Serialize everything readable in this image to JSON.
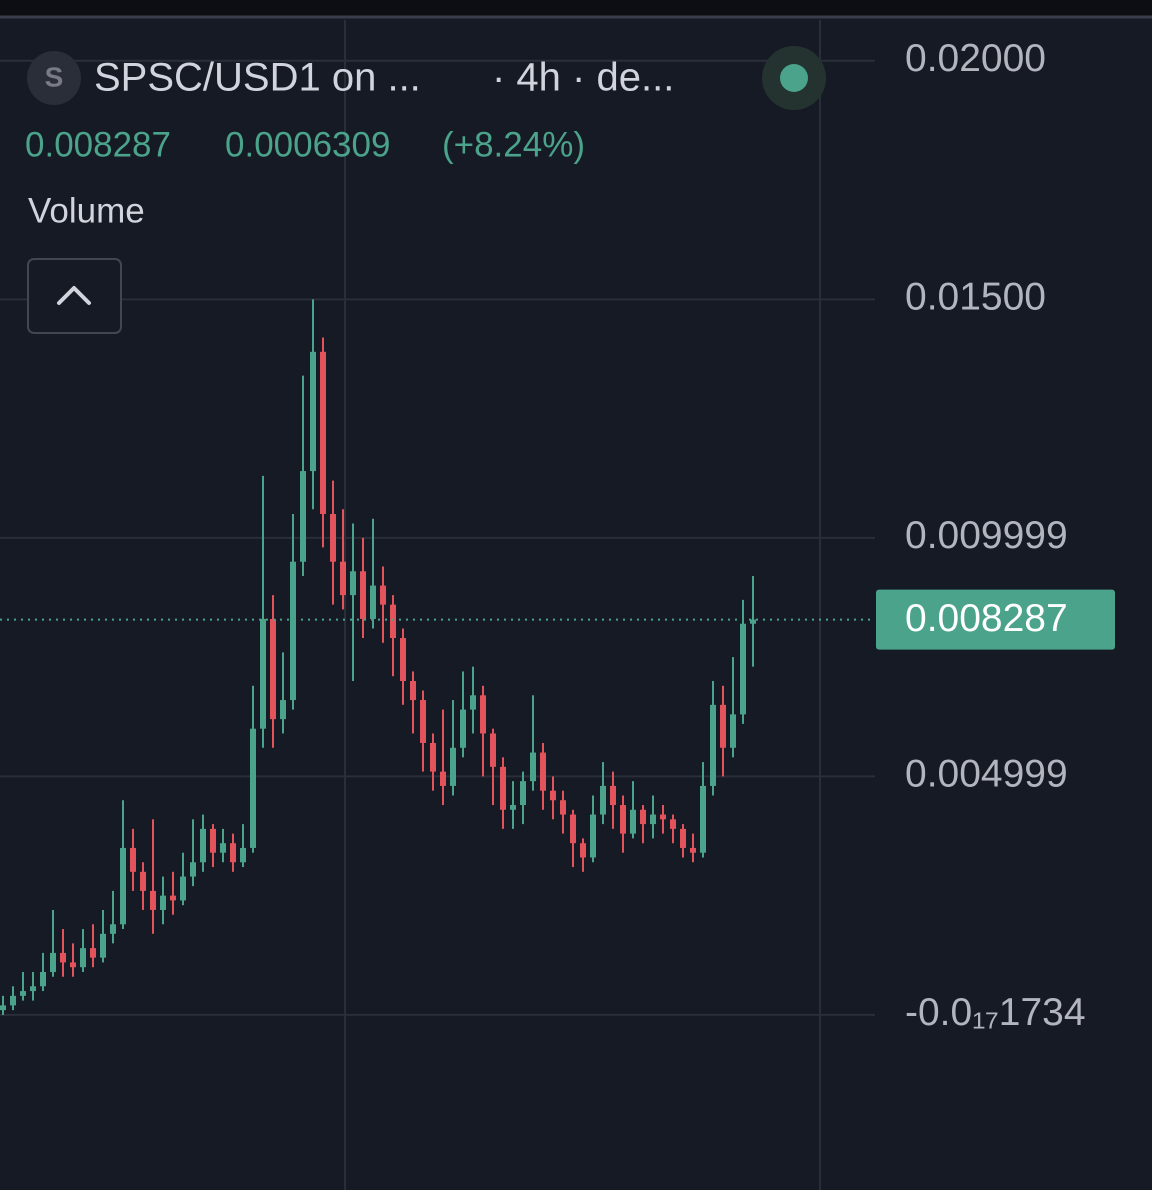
{
  "chart_data": {
    "type": "candlestick",
    "icon_letter": "S",
    "title": "SPSC/USD1 on ...",
    "subtitle": "· 4h · de...",
    "last_price": 0.008287,
    "change": 0.0006309,
    "change_pct": "(+8.24%)",
    "legend": "Volume",
    "up_color": "#4aa38a",
    "down_color": "#e2535c",
    "grid": true,
    "ylim": [
      -0.00367,
      0.02096
    ],
    "yticks": [
      {
        "value": 0.02,
        "label": "0.02000"
      },
      {
        "value": 0.015,
        "label": "0.01500"
      },
      0.009999,
      0.004999,
      {
        "value": -1.734e-18,
        "label": "-0.0₁₇1734"
      }
    ],
    "candles": {
      "open": [
        0.0001,
        0.0002,
        0.0004,
        0.0005,
        0.0006,
        0.0009,
        0.0013,
        0.0011,
        0.001,
        0.0014,
        0.0012,
        0.0017,
        0.0019,
        0.0035,
        0.003,
        0.0026,
        0.0022,
        0.0025,
        0.0024,
        0.0029,
        0.0032,
        0.0039,
        0.0034,
        0.0036,
        0.0032,
        0.0035,
        0.006,
        0.0083,
        0.0062,
        0.0066,
        0.0095,
        0.0114,
        0.0139,
        0.0105,
        0.0095,
        0.0088,
        0.0093,
        0.0083,
        0.009,
        0.0086,
        0.0079,
        0.007,
        0.0066,
        0.0057,
        0.0051,
        0.0048,
        0.0056,
        0.0064,
        0.0067,
        0.0059,
        0.0052,
        0.0043,
        0.0044,
        0.0049,
        0.0055,
        0.0047,
        0.0045,
        0.0042,
        0.0036,
        0.0033,
        0.0042,
        0.0048,
        0.0044,
        0.0038,
        0.0043,
        0.004,
        0.0042,
        0.0041,
        0.0039,
        0.0035,
        0.0034,
        0.0048,
        0.0065,
        0.0056,
        0.0063,
        0.0082
      ],
      "high": [
        0.0004,
        0.0006,
        0.0009,
        0.0009,
        0.0013,
        0.0022,
        0.0018,
        0.0015,
        0.0018,
        0.0019,
        0.0022,
        0.0026,
        0.0045,
        0.0039,
        0.0032,
        0.0041,
        0.0029,
        0.003,
        0.0034,
        0.0041,
        0.0042,
        0.004,
        0.0039,
        0.0038,
        0.004,
        0.0069,
        0.0113,
        0.0088,
        0.0076,
        0.0105,
        0.0134,
        0.015,
        0.0142,
        0.0112,
        0.0106,
        0.0103,
        0.01,
        0.0104,
        0.0094,
        0.0088,
        0.0081,
        0.0072,
        0.0068,
        0.0059,
        0.0064,
        0.0066,
        0.0072,
        0.0073,
        0.0069,
        0.006,
        0.0054,
        0.0049,
        0.0051,
        0.0067,
        0.0057,
        0.005,
        0.0047,
        0.0043,
        0.0037,
        0.0046,
        0.0053,
        0.0051,
        0.0046,
        0.0049,
        0.0044,
        0.0046,
        0.0044,
        0.0042,
        0.004,
        0.0038,
        0.0053,
        0.007,
        0.0069,
        0.0075,
        0.0087,
        0.0092
      ],
      "low": [
        0,
        0.0001,
        0.0003,
        0.0003,
        0.0005,
        0.0008,
        0.0008,
        0.0008,
        0.0009,
        0.001,
        0.0011,
        0.0015,
        0.0018,
        0.0026,
        0.0022,
        0.0017,
        0.0019,
        0.0021,
        0.0023,
        0.0027,
        0.003,
        0.0031,
        0.0032,
        0.003,
        0.0031,
        0.0034,
        0.0056,
        0.0056,
        0.0059,
        0.0064,
        0.0092,
        0.0106,
        0.0098,
        0.0086,
        0.0085,
        0.007,
        0.0079,
        0.0081,
        0.0078,
        0.0071,
        0.0065,
        0.0059,
        0.0051,
        0.0047,
        0.0044,
        0.0046,
        0.0054,
        0.0059,
        0.005,
        0.0044,
        0.0039,
        0.0039,
        0.004,
        0.0047,
        0.0043,
        0.0041,
        0.0038,
        0.0031,
        0.003,
        0.0032,
        0.004,
        0.0039,
        0.0034,
        0.0037,
        0.0036,
        0.0037,
        0.0038,
        0.0036,
        0.0033,
        0.0032,
        0.0033,
        0.0046,
        0.005,
        0.0054,
        0.0061,
        0.0073
      ],
      "close": [
        0.0002,
        0.0004,
        0.0005,
        0.0006,
        0.0009,
        0.0013,
        0.0011,
        0.001,
        0.0014,
        0.0012,
        0.0017,
        0.0019,
        0.0035,
        0.003,
        0.0026,
        0.0022,
        0.0025,
        0.0024,
        0.0029,
        0.0032,
        0.0039,
        0.0034,
        0.0036,
        0.0032,
        0.0035,
        0.006,
        0.0083,
        0.0062,
        0.0066,
        0.0095,
        0.0114,
        0.0139,
        0.0105,
        0.0095,
        0.0088,
        0.0093,
        0.0083,
        0.009,
        0.0086,
        0.0079,
        0.007,
        0.0066,
        0.0057,
        0.0051,
        0.0048,
        0.0056,
        0.0064,
        0.0067,
        0.0059,
        0.0052,
        0.0043,
        0.0044,
        0.0049,
        0.0055,
        0.0047,
        0.0045,
        0.0042,
        0.0036,
        0.0033,
        0.0042,
        0.0048,
        0.0044,
        0.0038,
        0.0043,
        0.004,
        0.0042,
        0.0041,
        0.0039,
        0.0035,
        0.0034,
        0.0048,
        0.0065,
        0.0056,
        0.0063,
        0.0082,
        0.008287
      ]
    }
  }
}
